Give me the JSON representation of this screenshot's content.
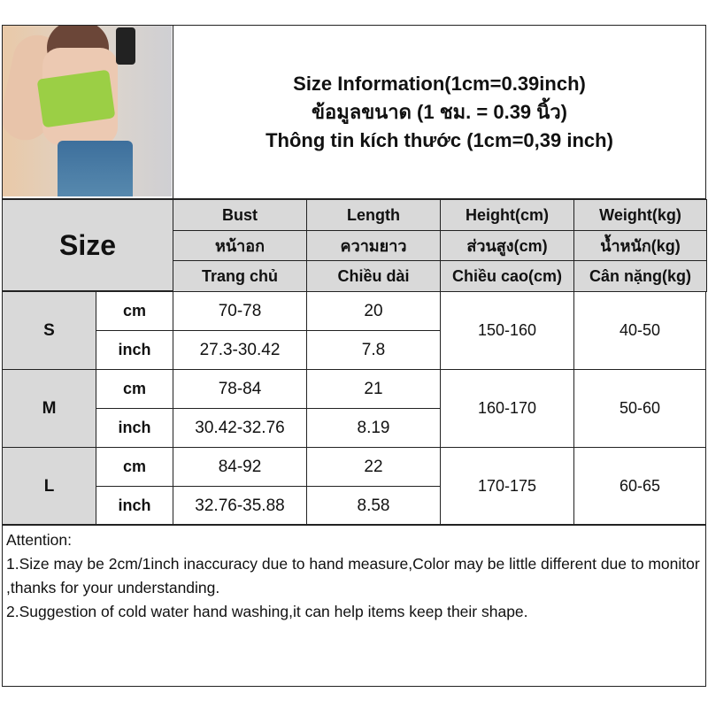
{
  "header": {
    "title_lines": [
      "Size Information(1cm=0.39inch)",
      "ข้อมูลขนาด (1 ชม. = 0.39 นิ้ว)",
      "Thông tin kích thước (1cm=0,39 inch)"
    ]
  },
  "table": {
    "size_label": "Size",
    "columns": [
      {
        "en": "Bust",
        "th": "หน้าอก",
        "vi": "Trang chủ"
      },
      {
        "en": "Length",
        "th": "ความยาว",
        "vi": "Chiều dài"
      },
      {
        "en": "Height(cm)",
        "th": "ส่วนสูง(cm)",
        "vi": "Chiều cao(cm)"
      },
      {
        "en": "Weight(kg)",
        "th": "น้ำหนัก(kg)",
        "vi": "Cân nặng(kg)"
      }
    ],
    "rows": [
      {
        "size": "S",
        "cm_label": "cm",
        "inch_label": "inch",
        "bust_cm": "70-78",
        "bust_inch": "27.3-30.42",
        "length_cm": "20",
        "length_inch": "7.8",
        "height": "150-160",
        "weight": "40-50"
      },
      {
        "size": "M",
        "cm_label": "cm",
        "inch_label": "inch",
        "bust_cm": "78-84",
        "bust_inch": "30.42-32.76",
        "length_cm": "21",
        "length_inch": "8.19",
        "height": "160-170",
        "weight": "50-60"
      },
      {
        "size": "L",
        "cm_label": "cm",
        "inch_label": "inch",
        "bust_cm": "84-92",
        "bust_inch": "32.76-35.88",
        "length_cm": "22",
        "length_inch": "8.58",
        "height": "170-175",
        "weight": "60-65"
      }
    ]
  },
  "attention": {
    "title": "Attention:",
    "line1": "1.Size may be 2cm/1inch inaccuracy due to hand measure,Color may be little different due to monitor ,thanks for your understanding.",
    "line2": "2.Suggestion of cold water hand washing,it can help items keep their shape."
  },
  "colors": {
    "header_fill": "#d9d9d9",
    "border": "#222222"
  }
}
